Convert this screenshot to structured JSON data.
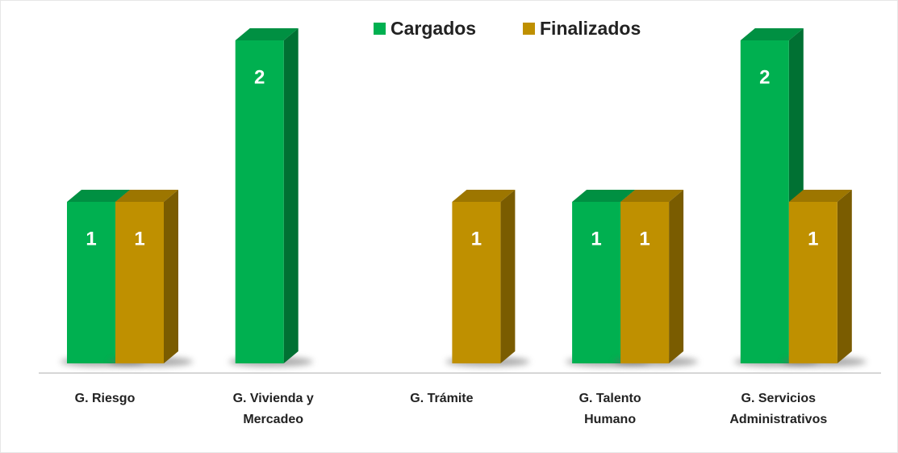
{
  "chart_data": {
    "type": "bar3d",
    "categories": [
      "G. Riesgo",
      "G. Vivienda y Mercadeo",
      "G. Trámite",
      "G. Talento Humano",
      "G. Servicios Administrativos"
    ],
    "series": [
      {
        "name": "Cargados",
        "color": "#00b050",
        "values": [
          1,
          2,
          null,
          1,
          2
        ]
      },
      {
        "name": "Finalizados",
        "color": "#bf9000",
        "values": [
          1,
          null,
          1,
          1,
          1
        ]
      }
    ],
    "ylim": [
      0,
      2
    ]
  }
}
